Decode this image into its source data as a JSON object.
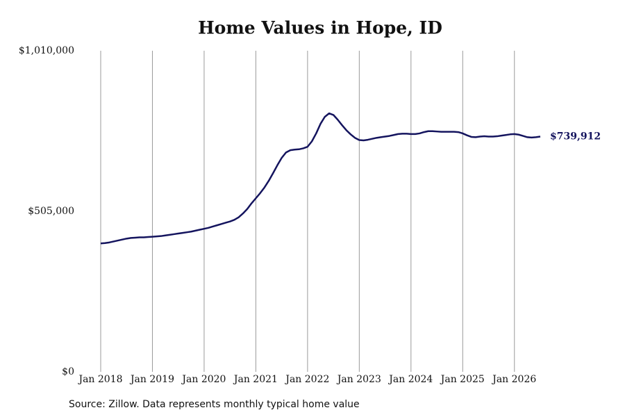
{
  "chart_data": {
    "type": "line",
    "title": "Home Values in Hope, ID",
    "source": "Source: Zillow. Data represents monthly typical home value",
    "x": [
      "2018-01",
      "2018-02",
      "2018-03",
      "2018-04",
      "2018-05",
      "2018-06",
      "2018-07",
      "2018-08",
      "2018-09",
      "2018-10",
      "2018-11",
      "2018-12",
      "2019-01",
      "2019-02",
      "2019-03",
      "2019-04",
      "2019-05",
      "2019-06",
      "2019-07",
      "2019-08",
      "2019-09",
      "2019-10",
      "2019-11",
      "2019-12",
      "2020-01",
      "2020-02",
      "2020-03",
      "2020-04",
      "2020-05",
      "2020-06",
      "2020-07",
      "2020-08",
      "2020-09",
      "2020-10",
      "2020-11",
      "2020-12",
      "2021-01",
      "2021-02",
      "2021-03",
      "2021-04",
      "2021-05",
      "2021-06",
      "2021-07",
      "2021-08",
      "2021-09",
      "2021-10",
      "2021-11",
      "2021-12",
      "2022-01",
      "2022-02",
      "2022-03",
      "2022-04",
      "2022-05",
      "2022-06",
      "2022-07",
      "2022-08",
      "2022-09",
      "2022-10",
      "2022-11",
      "2022-12",
      "2023-01",
      "2023-02",
      "2023-03",
      "2023-04",
      "2023-05",
      "2023-06",
      "2023-07",
      "2023-08",
      "2023-09",
      "2023-10",
      "2023-11",
      "2023-12",
      "2024-01",
      "2024-02",
      "2024-03",
      "2024-04",
      "2024-05",
      "2024-06",
      "2024-07",
      "2024-08",
      "2024-09",
      "2024-10",
      "2024-11",
      "2024-12",
      "2025-01",
      "2025-02",
      "2025-03",
      "2025-04",
      "2025-05",
      "2025-06",
      "2025-07",
      "2025-08",
      "2025-09",
      "2025-10",
      "2025-11",
      "2025-12",
      "2026-01",
      "2026-02",
      "2026-03",
      "2026-04",
      "2026-05",
      "2026-06",
      "2026-07"
    ],
    "series": [
      {
        "color": "#14145e",
        "values": [
          404000,
          405000,
          407000,
          410000,
          413000,
          416000,
          419000,
          421000,
          422000,
          423000,
          423000,
          424000,
          425000,
          426000,
          427000,
          429000,
          431000,
          433000,
          435000,
          437000,
          439000,
          441000,
          444000,
          447000,
          450000,
          453000,
          457000,
          461000,
          465000,
          469000,
          473000,
          478000,
          486000,
          498000,
          512000,
          530000,
          546000,
          562000,
          580000,
          601000,
          625000,
          650000,
          673000,
          690000,
          697000,
          699000,
          700000,
          703000,
          708000,
          725000,
          750000,
          780000,
          802000,
          813000,
          808000,
          793000,
          776000,
          760000,
          747000,
          736000,
          729000,
          728000,
          730000,
          733000,
          736000,
          738000,
          740000,
          742000,
          745000,
          748000,
          749000,
          749000,
          748000,
          748000,
          750000,
          754000,
          757000,
          757000,
          756000,
          755000,
          755000,
          755000,
          755000,
          754000,
          750000,
          744000,
          739000,
          738000,
          740000,
          741000,
          740000,
          740000,
          741000,
          743000,
          745000,
          747000,
          748000,
          746000,
          742000,
          738000,
          737000,
          738000,
          739912
        ],
        "value_labels": [
          null,
          null,
          null,
          null,
          null,
          null,
          null,
          null,
          null,
          null,
          null,
          null,
          null,
          null,
          null,
          null,
          null,
          null,
          null,
          null,
          null,
          null,
          null,
          null,
          null,
          null,
          null,
          null,
          null,
          null,
          null,
          null,
          null,
          null,
          null,
          null,
          null,
          null,
          null,
          null,
          null,
          null,
          null,
          null,
          null,
          null,
          null,
          null,
          null,
          null,
          null,
          null,
          null,
          null,
          null,
          null,
          null,
          null,
          null,
          null,
          null,
          null,
          null,
          null,
          null,
          null,
          null,
          null,
          null,
          null,
          null,
          null,
          null,
          null,
          null,
          null,
          null,
          null,
          null,
          null,
          null,
          null,
          null,
          null,
          null,
          null,
          null,
          null,
          null,
          null,
          null,
          null,
          null,
          null,
          null,
          null,
          null,
          null,
          null,
          null,
          null,
          null,
          "$739,912"
        ]
      }
    ],
    "xlim": [
      "2018-01",
      "2026-07"
    ],
    "xticks": [
      {
        "value": "2018-01",
        "label": "Jan 2018"
      },
      {
        "value": "2019-01",
        "label": "Jan 2019"
      },
      {
        "value": "2020-01",
        "label": "Jan 2020"
      },
      {
        "value": "2021-01",
        "label": "Jan 2021"
      },
      {
        "value": "2022-01",
        "label": "Jan 2022"
      },
      {
        "value": "2023-01",
        "label": "Jan 2023"
      },
      {
        "value": "2024-01",
        "label": "Jan 2024"
      },
      {
        "value": "2025-01",
        "label": "Jan 2025"
      },
      {
        "value": "2026-01",
        "label": "Jan 2026"
      }
    ],
    "ylim": [
      0,
      1010000
    ],
    "yticks": [
      {
        "value": 0,
        "label": "$0"
      },
      {
        "value": 505000,
        "label": "$505,000"
      },
      {
        "value": 1010000,
        "label": "$1,010,000"
      }
    ],
    "grid": "x"
  }
}
